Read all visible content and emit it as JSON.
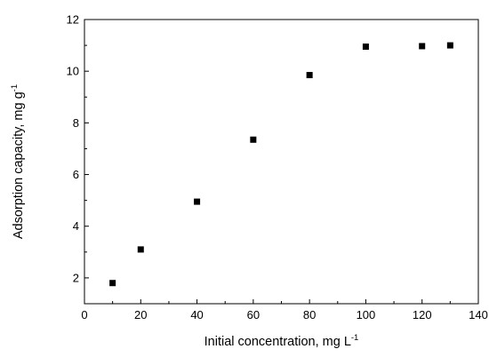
{
  "chart_data": {
    "type": "scatter",
    "xlabel": "Initial concentration, mg L",
    "xlabel_sup": "-1",
    "ylabel": "Adsorption capacity, mg g",
    "ylabel_sup": "-1",
    "xlim": [
      0,
      140
    ],
    "ylim": [
      1,
      12
    ],
    "xticks": [
      0,
      20,
      40,
      60,
      80,
      100,
      120,
      140
    ],
    "yticks": [
      2,
      4,
      6,
      8,
      10,
      12
    ],
    "grid": false,
    "legend": "none",
    "marker": "square",
    "color": "#000000",
    "series": [
      {
        "x": [
          10,
          20,
          40,
          60,
          80,
          100,
          120,
          130
        ],
        "y": [
          1.8,
          3.1,
          4.95,
          7.35,
          9.85,
          10.95,
          10.97,
          11.0
        ]
      }
    ]
  }
}
